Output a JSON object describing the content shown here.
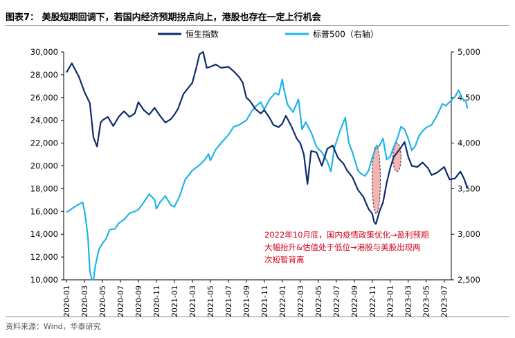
{
  "header": {
    "title": "图表7：  美股短期回调下，若国内经济预期拐点向上，港股也存在一定上行机会"
  },
  "footer": {
    "source": "资料来源：Wind，华泰研究"
  },
  "colors": {
    "hsi": "#0d2a6e",
    "spx": "#1fb4e8",
    "annotation": "#d0021b",
    "ellipse_fill": "#f4a6a6"
  },
  "annotation": {
    "line1": "2022年10月底，国内疫情政策优化→盈利预期",
    "line2": "大幅抬升&估值处于低位→港股与美股出现两",
    "line3": "次短暂背离"
  },
  "chart_data": {
    "type": "line",
    "title": "",
    "legend_position": "top-center",
    "x_tick_labels": [
      "2020-01",
      "2020-03",
      "2020-05",
      "2020-07",
      "2020-09",
      "2020-11",
      "2021-01",
      "2021-03",
      "2021-05",
      "2021-07",
      "2021-09",
      "2021-11",
      "2022-01",
      "2022-03",
      "2022-05",
      "2022-07",
      "2022-09",
      "2022-11",
      "2023-01",
      "2023-03",
      "2023-05",
      "2023-07"
    ],
    "y_left": {
      "min": 10000,
      "max": 30000,
      "ticks": [
        "10,000",
        "12,000",
        "14,000",
        "16,000",
        "18,000",
        "20,000",
        "22,000",
        "24,000",
        "26,000",
        "28,000",
        "30,000"
      ]
    },
    "y_right": {
      "min": 2500,
      "max": 5000,
      "ticks": [
        "2,500",
        "3,000",
        "3,500",
        "4,000",
        "4,500",
        "5,000"
      ]
    },
    "series": [
      {
        "name": "恒生指数",
        "axis": "left",
        "points": [
          [
            0,
            28200
          ],
          [
            0.3,
            29000
          ],
          [
            0.7,
            27800
          ],
          [
            1,
            26500
          ],
          [
            1.3,
            25500
          ],
          [
            1.5,
            22500
          ],
          [
            1.7,
            21700
          ],
          [
            1.9,
            23800
          ],
          [
            2,
            24000
          ],
          [
            2.3,
            24300
          ],
          [
            2.6,
            23500
          ],
          [
            2.9,
            24300
          ],
          [
            3.2,
            24800
          ],
          [
            3.5,
            24300
          ],
          [
            3.8,
            24600
          ],
          [
            4,
            25600
          ],
          [
            4.3,
            24900
          ],
          [
            4.6,
            24500
          ],
          [
            4.9,
            25100
          ],
          [
            5.2,
            24400
          ],
          [
            5.5,
            23800
          ],
          [
            5.8,
            24100
          ],
          [
            6,
            24500
          ],
          [
            6.2,
            25000
          ],
          [
            6.5,
            26300
          ],
          [
            6.8,
            26900
          ],
          [
            7,
            27300
          ],
          [
            7.2,
            28500
          ],
          [
            7.4,
            29800
          ],
          [
            7.6,
            30000
          ],
          [
            7.8,
            28600
          ],
          [
            8,
            28700
          ],
          [
            8.3,
            28900
          ],
          [
            8.6,
            28600
          ],
          [
            9,
            28700
          ],
          [
            9.3,
            28300
          ],
          [
            9.6,
            27800
          ],
          [
            9.8,
            27300
          ],
          [
            10,
            26000
          ],
          [
            10.2,
            25700
          ],
          [
            10.5,
            25000
          ],
          [
            10.8,
            24600
          ],
          [
            11,
            24900
          ],
          [
            11.3,
            24200
          ],
          [
            11.5,
            23600
          ],
          [
            11.8,
            23400
          ],
          [
            12,
            23700
          ],
          [
            12.2,
            24400
          ],
          [
            12.5,
            23500
          ],
          [
            12.8,
            22400
          ],
          [
            13,
            22000
          ],
          [
            13.2,
            21000
          ],
          [
            13.4,
            18400
          ],
          [
            13.6,
            21300
          ],
          [
            13.9,
            21200
          ],
          [
            14.2,
            20000
          ],
          [
            14.5,
            21500
          ],
          [
            14.8,
            21800
          ],
          [
            15.1,
            20700
          ],
          [
            15.4,
            20200
          ],
          [
            15.6,
            19600
          ],
          [
            15.9,
            19000
          ],
          [
            16.2,
            17900
          ],
          [
            16.5,
            17300
          ],
          [
            16.8,
            16200
          ],
          [
            17,
            15800
          ],
          [
            17.1,
            15100
          ],
          [
            17.2,
            14900
          ],
          [
            17.4,
            16000
          ],
          [
            17.6,
            16800
          ],
          [
            17.8,
            18500
          ],
          [
            18,
            19800
          ],
          [
            18.2,
            20800
          ],
          [
            18.5,
            21400
          ],
          [
            18.8,
            22100
          ],
          [
            19,
            20800
          ],
          [
            19.2,
            20000
          ],
          [
            19.5,
            19900
          ],
          [
            19.8,
            20300
          ],
          [
            20.1,
            19800
          ],
          [
            20.3,
            19200
          ],
          [
            20.6,
            19400
          ],
          [
            21,
            19900
          ],
          [
            21.3,
            18800
          ],
          [
            21.6,
            18900
          ],
          [
            21.9,
            19500
          ],
          [
            22.1,
            18900
          ],
          [
            22.3,
            18000
          ]
        ]
      },
      {
        "name": "标普500（右轴）",
        "axis": "right",
        "points": [
          [
            0,
            3240
          ],
          [
            0.3,
            3280
          ],
          [
            0.6,
            3320
          ],
          [
            0.9,
            3350
          ],
          [
            1,
            3260
          ],
          [
            1.1,
            3120
          ],
          [
            1.2,
            2950
          ],
          [
            1.3,
            2600
          ],
          [
            1.4,
            2510
          ],
          [
            1.5,
            2500
          ],
          [
            1.6,
            2650
          ],
          [
            1.8,
            2830
          ],
          [
            2,
            2900
          ],
          [
            2.2,
            2950
          ],
          [
            2.4,
            3050
          ],
          [
            2.7,
            3060
          ],
          [
            2.9,
            3120
          ],
          [
            3.2,
            3160
          ],
          [
            3.5,
            3230
          ],
          [
            3.8,
            3250
          ],
          [
            4,
            3270
          ],
          [
            4.3,
            3350
          ],
          [
            4.6,
            3440
          ],
          [
            4.9,
            3380
          ],
          [
            5,
            3280
          ],
          [
            5.2,
            3350
          ],
          [
            5.5,
            3420
          ],
          [
            5.8,
            3320
          ],
          [
            6,
            3300
          ],
          [
            6.3,
            3420
          ],
          [
            6.6,
            3600
          ],
          [
            6.8,
            3650
          ],
          [
            7,
            3700
          ],
          [
            7.4,
            3760
          ],
          [
            7.7,
            3820
          ],
          [
            7.9,
            3880
          ],
          [
            8,
            3810
          ],
          [
            8.3,
            3930
          ],
          [
            8.6,
            4000
          ],
          [
            9,
            4090
          ],
          [
            9.3,
            4180
          ],
          [
            9.6,
            4200
          ],
          [
            10,
            4250
          ],
          [
            10.3,
            4350
          ],
          [
            10.5,
            4400
          ],
          [
            10.8,
            4450
          ],
          [
            11,
            4370
          ],
          [
            11.3,
            4480
          ],
          [
            11.6,
            4550
          ],
          [
            11.8,
            4530
          ],
          [
            12,
            4700
          ],
          [
            12.1,
            4580
          ],
          [
            12.3,
            4420
          ],
          [
            12.6,
            4340
          ],
          [
            12.9,
            4480
          ],
          [
            13.1,
            4150
          ],
          [
            13.3,
            4230
          ],
          [
            13.6,
            4120
          ],
          [
            13.9,
            3960
          ],
          [
            14.2,
            3900
          ],
          [
            14.5,
            3800
          ],
          [
            14.7,
            3690
          ],
          [
            14.9,
            3950
          ],
          [
            15.2,
            4130
          ],
          [
            15.5,
            4280
          ],
          [
            15.7,
            4000
          ],
          [
            15.9,
            3900
          ],
          [
            16.2,
            3700
          ],
          [
            16.4,
            3660
          ],
          [
            16.6,
            3640
          ],
          [
            16.8,
            3700
          ],
          [
            17,
            3840
          ],
          [
            17.2,
            3950
          ],
          [
            17.4,
            3970
          ],
          [
            17.6,
            4050
          ],
          [
            17.8,
            3820
          ],
          [
            18,
            3850
          ],
          [
            18.2,
            3960
          ],
          [
            18.4,
            4050
          ],
          [
            18.6,
            4180
          ],
          [
            18.8,
            4150
          ],
          [
            19,
            4050
          ],
          [
            19.2,
            3920
          ],
          [
            19.4,
            3970
          ],
          [
            19.6,
            4080
          ],
          [
            19.8,
            4130
          ],
          [
            20,
            4170
          ],
          [
            20.3,
            4200
          ],
          [
            20.6,
            4300
          ],
          [
            20.9,
            4430
          ],
          [
            21.1,
            4410
          ],
          [
            21.4,
            4470
          ],
          [
            21.6,
            4510
          ],
          [
            21.8,
            4580
          ],
          [
            22,
            4490
          ],
          [
            22.2,
            4460
          ],
          [
            22.3,
            4380
          ]
        ]
      }
    ],
    "highlight_ellipses": [
      {
        "x_start_tick": 17.0,
        "x_end_tick": 17.45,
        "y_top": 21800,
        "y_bottom": 15800
      },
      {
        "x_start_tick": 18.15,
        "x_end_tick": 18.6,
        "y_top": 22000,
        "y_bottom": 19500
      }
    ]
  }
}
